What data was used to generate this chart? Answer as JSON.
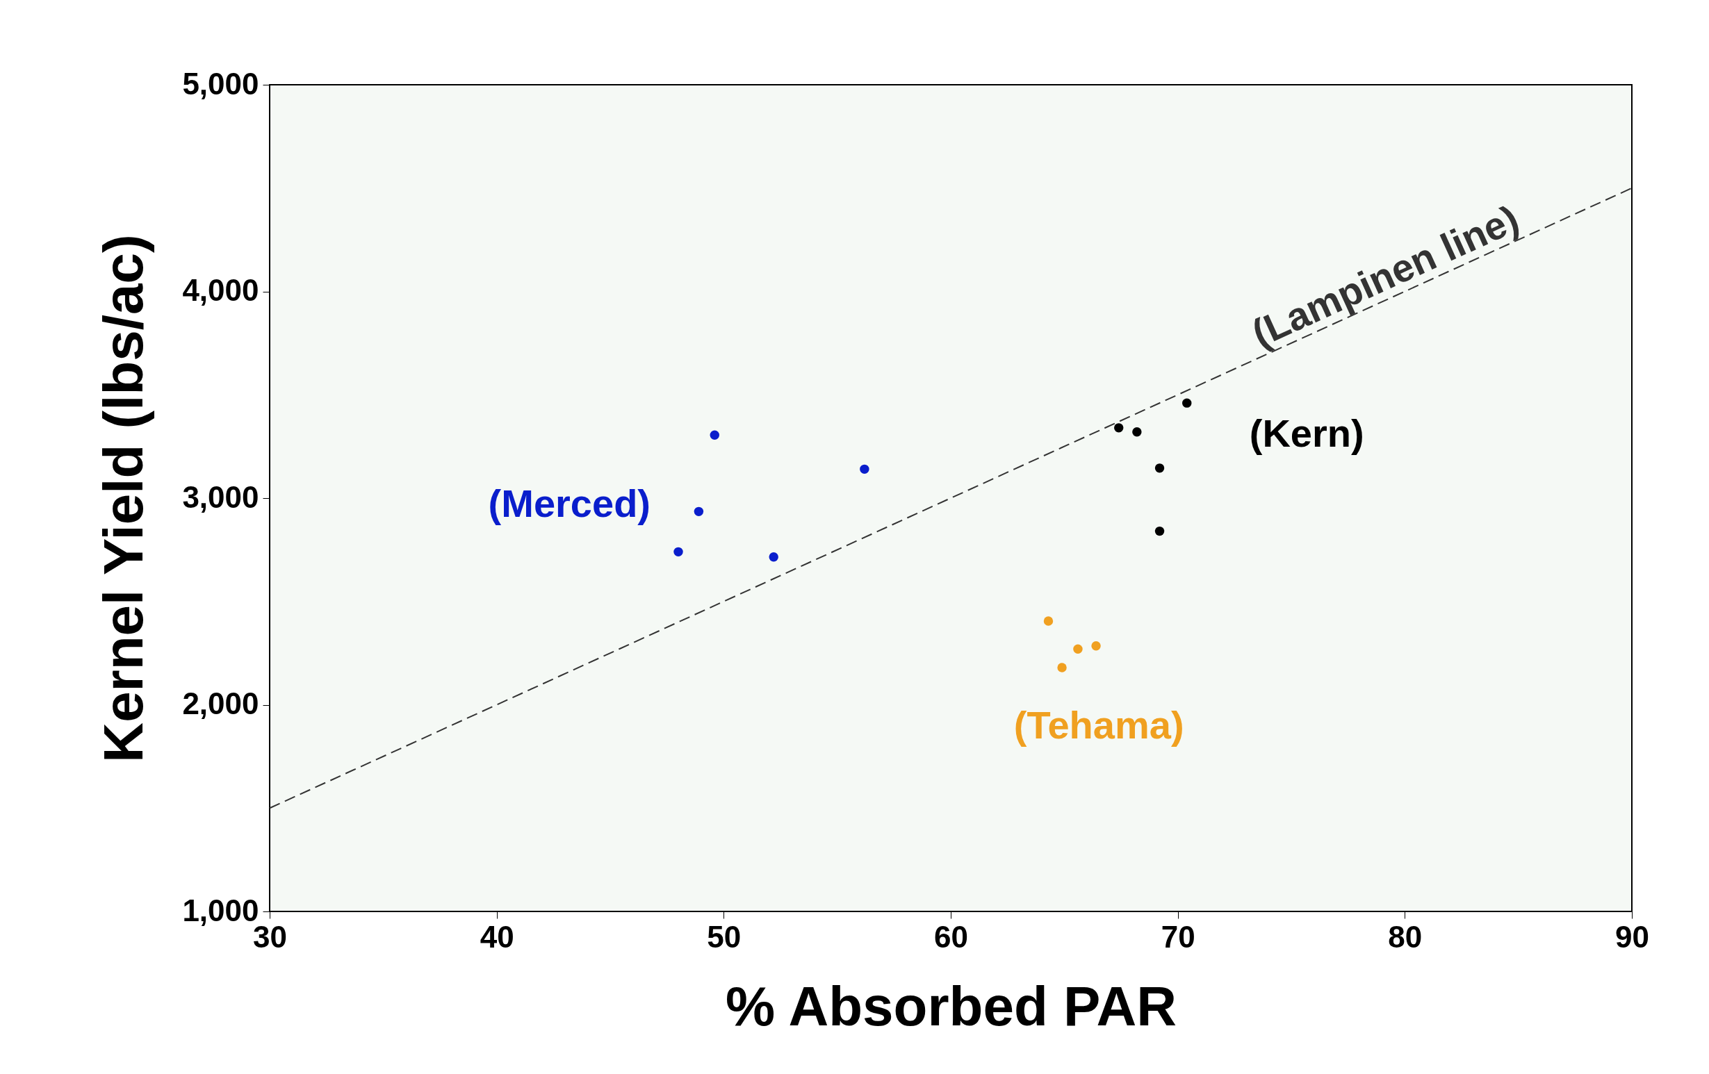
{
  "chart_data": {
    "type": "scatter",
    "xlabel": "% Absorbed PAR",
    "ylabel": "Kernel Yield (lbs/ac)",
    "xlim": [
      30,
      90
    ],
    "xticks": [
      30,
      40,
      50,
      60,
      70,
      80,
      90
    ],
    "ylim": [
      1000,
      5000
    ],
    "yticks": [
      {
        "value": 1000,
        "label": "1,000"
      },
      {
        "value": 2000,
        "label": "2,000"
      },
      {
        "value": 3000,
        "label": "3,000"
      },
      {
        "value": 4000,
        "label": "4,000"
      },
      {
        "value": 5000,
        "label": "5,000"
      }
    ],
    "grid": false,
    "series": [
      {
        "name": "(Merced)",
        "marker": "circle",
        "color": "#0a1ecc",
        "x": [
          48.0,
          48.9,
          49.6,
          52.2,
          56.2
        ],
        "values": [
          2740,
          2935,
          3305,
          2715,
          3140
        ]
      },
      {
        "name": "(Kern)",
        "marker": "circle",
        "color": "#000000",
        "x": [
          67.4,
          68.2,
          69.2,
          69.2,
          70.4
        ],
        "values": [
          3340,
          3320,
          3145,
          2840,
          3460
        ]
      },
      {
        "name": "(Tehama)",
        "marker": "circle",
        "color": "#f0a020",
        "x": [
          64.3,
          64.9,
          65.6,
          66.4
        ],
        "values": [
          2405,
          2180,
          2270,
          2285
        ]
      },
      {
        "name": "(Lampinen line)",
        "type": "line",
        "line_style": "dashed",
        "color": "#333333",
        "x": [
          30,
          90
        ],
        "values": [
          1500,
          4500
        ]
      }
    ]
  }
}
